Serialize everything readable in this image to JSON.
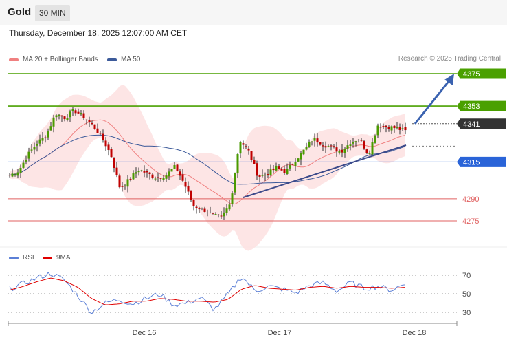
{
  "header": {
    "symbol": "Gold",
    "timeframe": "30 MIN"
  },
  "datetime": "Thursday, December 18, 2025 12:07:00 AM CET",
  "legend": {
    "ma20": "MA 20 + Bollinger Bands",
    "ma20_color": "#f08080",
    "ma50": "MA 50",
    "ma50_color": "#3c5a9a"
  },
  "credit": "Research © 2025 Trading Central",
  "rsi_legend": {
    "rsi": "RSI",
    "rsi_color": "#5b7fd6",
    "ma9": "9MA",
    "ma9_color": "#e00000"
  },
  "chart_data": [
    {
      "type": "candlestick",
      "ylim": [
        4267,
        4393
      ],
      "levels": [
        {
          "value": 4375,
          "label": "4375",
          "color": "#4aa000",
          "style": "resistance"
        },
        {
          "value": 4353,
          "label": "4353",
          "color": "#4aa000",
          "style": "resistance"
        },
        {
          "value": 4341,
          "label": "4341",
          "color": "#333333",
          "style": "last-price"
        },
        {
          "value": 4315,
          "label": "4315",
          "color": "#2a64d8",
          "style": "pivot"
        },
        {
          "value": 4290,
          "label": "4290",
          "color": "#e06060",
          "style": "support"
        },
        {
          "value": 4275,
          "label": "4275",
          "color": "#e06060",
          "style": "support"
        }
      ],
      "x_ticks": [
        "Dec 16",
        "Dec 17",
        "Dec 18"
      ],
      "price_path": [
        4306,
        4309,
        4320,
        4328,
        4333,
        4348,
        4345,
        4350,
        4346,
        4340,
        4332,
        4320,
        4297,
        4303,
        4310,
        4307,
        4304,
        4306,
        4312,
        4300,
        4285,
        4283,
        4279,
        4277,
        4287,
        4330,
        4322,
        4305,
        4307,
        4311,
        4308,
        4316,
        4323,
        4331,
        4327,
        4325,
        4322,
        4328,
        4331,
        4320,
        4340,
        4339,
        4338,
        4336
      ]
    },
    {
      "type": "line",
      "title": "RSI",
      "ylim": [
        25,
        80
      ],
      "y_ticks": [
        70,
        50,
        30
      ],
      "series": [
        {
          "name": "RSI",
          "values": [
            55,
            61,
            67,
            72,
            65,
            48,
            30,
            40,
            44,
            39,
            45,
            50,
            38,
            40,
            46,
            33,
            49,
            69,
            53,
            58,
            55,
            51,
            59,
            62,
            53,
            62,
            56,
            58,
            54,
            61
          ]
        },
        {
          "name": "9MA",
          "values": [
            54,
            58,
            63,
            67,
            64,
            57,
            45,
            38,
            39,
            42,
            42,
            45,
            44,
            42,
            42,
            41,
            44,
            55,
            59,
            56,
            55,
            54,
            57,
            58,
            56,
            58,
            57,
            57,
            56,
            57
          ]
        }
      ]
    }
  ]
}
